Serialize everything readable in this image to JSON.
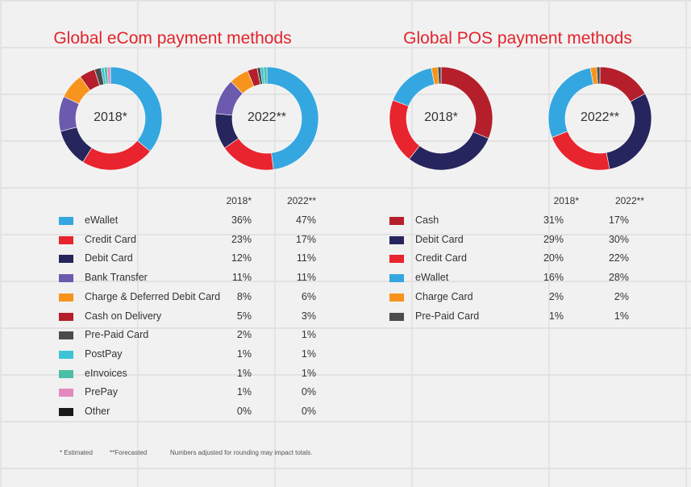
{
  "footnotes": {
    "estimated": "* Estimated",
    "forecasted": "**Forecasted",
    "rounding": "Numbers adjusted for rounding may impact totals."
  },
  "chart_data": [
    {
      "type": "pie",
      "title": "Global eCom payment methods",
      "column_headers": [
        "2018*",
        "2022**"
      ],
      "categories": [
        "eWallet",
        "Credit Card",
        "Debit Card",
        "Bank Transfer",
        "Charge & Deferred Debit Card",
        "Cash on Delivery",
        "Pre-Paid Card",
        "PostPay",
        "eInvoices",
        "PrePay",
        "Other"
      ],
      "colors": [
        "#35a7e0",
        "#e8242e",
        "#27255d",
        "#6b5aad",
        "#f7941d",
        "#b51f2b",
        "#4b4b4b",
        "#3ec3d5",
        "#4bbfa6",
        "#e28ac0",
        "#1a1a1a"
      ],
      "series": [
        {
          "name": "2018*",
          "values": [
            36,
            23,
            12,
            11,
            8,
            5,
            2,
            1,
            1,
            1,
            0
          ],
          "display": [
            "36%",
            "23%",
            "12%",
            "11%",
            "8%",
            "5%",
            "2%",
            "1%",
            "1%",
            "1%",
            "0%"
          ]
        },
        {
          "name": "2022**",
          "values": [
            47,
            17,
            11,
            11,
            6,
            3,
            1,
            1,
            1,
            0,
            0
          ],
          "display": [
            "47%",
            "17%",
            "11%",
            "11%",
            "6%",
            "3%",
            "1%",
            "1%",
            "1%",
            "0%",
            "0%"
          ]
        }
      ]
    },
    {
      "type": "pie",
      "title": "Global POS payment methods",
      "column_headers": [
        "2018*",
        "2022**"
      ],
      "categories": [
        "Cash",
        "Debit Card",
        "Credit Card",
        "eWallet",
        "Charge Card",
        "Pre-Paid Card"
      ],
      "colors": [
        "#b51f2b",
        "#27255d",
        "#e8242e",
        "#35a7e0",
        "#f7941d",
        "#4b4b4b"
      ],
      "series": [
        {
          "name": "2018*",
          "values": [
            31,
            29,
            20,
            16,
            2,
            1
          ],
          "display": [
            "31%",
            "29%",
            "20%",
            "16%",
            "2%",
            "1%"
          ]
        },
        {
          "name": "2022**",
          "values": [
            17,
            30,
            22,
            28,
            2,
            1
          ],
          "display": [
            "17%",
            "30%",
            "22%",
            "28%",
            "2%",
            "1%"
          ]
        }
      ]
    }
  ]
}
